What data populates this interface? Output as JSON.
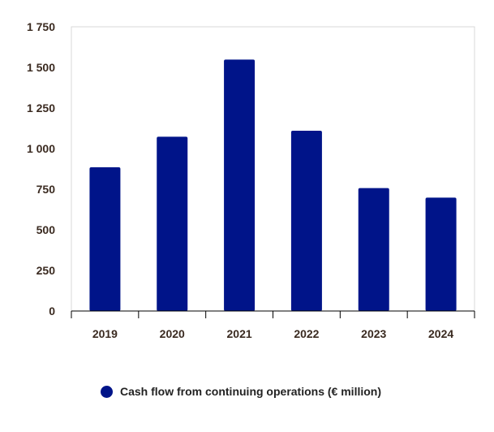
{
  "chart_data": {
    "type": "bar",
    "categories": [
      "2019",
      "2020",
      "2021",
      "2022",
      "2023",
      "2024"
    ],
    "series": [
      {
        "name": "Cash flow from continuing operations (€ million)",
        "values": [
          885,
          1073,
          1548,
          1110,
          757,
          698
        ]
      }
    ],
    "ylim": [
      0,
      1750
    ],
    "yticks": [
      0,
      250,
      500,
      750,
      1000,
      1250,
      1500,
      1750
    ],
    "ytick_labels": [
      "0",
      "250",
      "500",
      "750",
      "1 000",
      "1 250",
      "1 500",
      "1 750"
    ],
    "grid": false,
    "legend_position": "bottom",
    "colors": {
      "bar": "#001489",
      "tick_text": "#3a2a20",
      "plot_border": "#d9d9d9"
    }
  }
}
